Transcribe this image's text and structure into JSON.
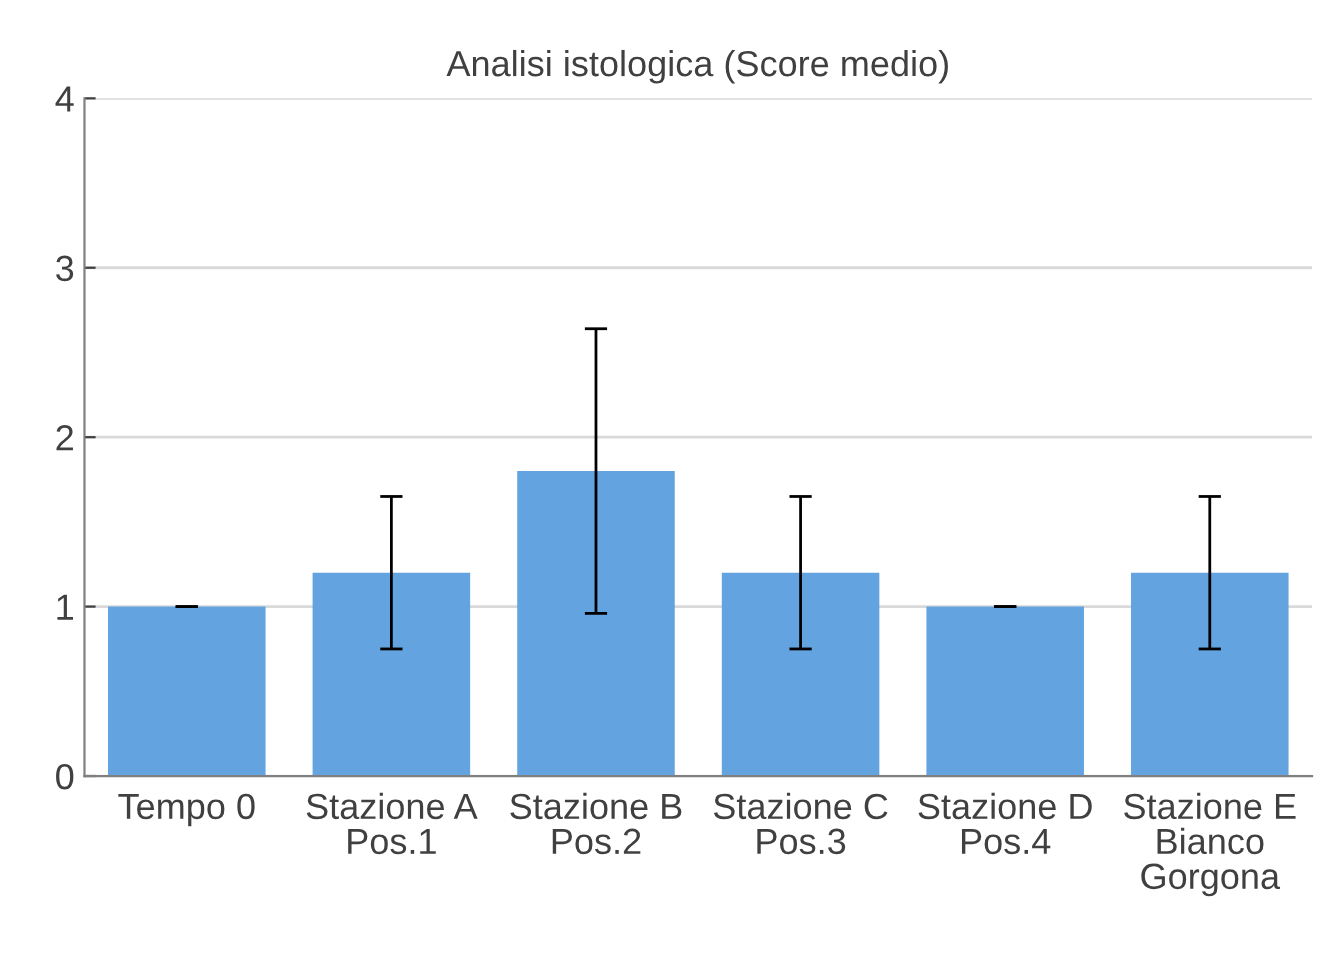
{
  "chart_data": {
    "type": "bar",
    "title": "Analisi istologica (Score medio)",
    "categories": [
      "Tempo 0",
      "Stazione A\nPos.1",
      "Stazione B\nPos.2",
      "Stazione C\nPos.3",
      "Stazione D\nPos.4",
      "Stazione E\nBianco\nGorgona"
    ],
    "values": [
      1.0,
      1.2,
      1.8,
      1.2,
      1.0,
      1.2
    ],
    "errors": [
      0,
      0.45,
      0.84,
      0.45,
      0,
      0.45
    ],
    "color": "#62a3e0",
    "ylim": [
      0,
      4
    ],
    "yticks": [
      0,
      1,
      2,
      3,
      4
    ],
    "grid": "y"
  }
}
